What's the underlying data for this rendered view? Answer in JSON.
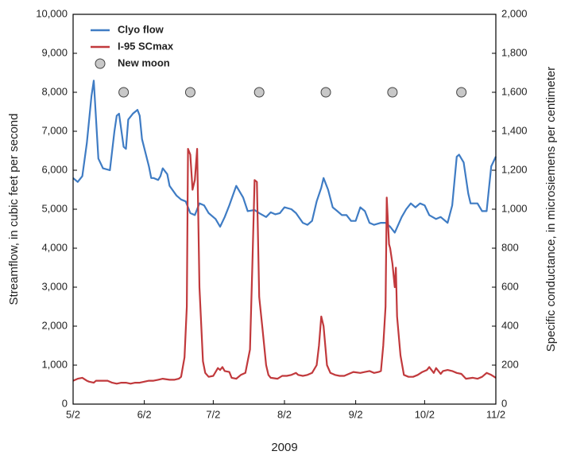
{
  "chart_data": {
    "type": "line",
    "x_label": "2009",
    "y_label": "Streamflow, in cubic feet per second",
    "y2_label": "Specific conductance, in microsiemens per centimeter",
    "xlim": [
      0,
      184
    ],
    "xticks": [
      {
        "value": 0,
        "label": "5/2"
      },
      {
        "value": 31,
        "label": "6/2"
      },
      {
        "value": 61,
        "label": "7/2"
      },
      {
        "value": 92,
        "label": "8/2"
      },
      {
        "value": 123,
        "label": "9/2"
      },
      {
        "value": 153,
        "label": "10/2"
      },
      {
        "value": 184,
        "label": "11/2"
      }
    ],
    "ylim": [
      0,
      10000
    ],
    "yticks": [
      0,
      {
        "value": 1000,
        "label": "1,000"
      },
      {
        "value": 2000,
        "label": "2,000"
      },
      {
        "value": 3000,
        "label": "3,000"
      },
      {
        "value": 4000,
        "label": "4,000"
      },
      {
        "value": 5000,
        "label": "5,000"
      },
      {
        "value": 6000,
        "label": "6,000"
      },
      {
        "value": 7000,
        "label": "7,000"
      },
      {
        "value": 8000,
        "label": "8,000"
      },
      {
        "value": 9000,
        "label": "9,000"
      },
      {
        "value": 10000,
        "label": "10,000"
      }
    ],
    "y2lim": [
      0,
      2000
    ],
    "y2ticks": [
      0,
      200,
      400,
      600,
      800,
      {
        "value": 1000,
        "label": "1,000"
      },
      {
        "value": 1200,
        "label": "1,200"
      },
      {
        "value": 1400,
        "label": "1,400"
      },
      {
        "value": 1600,
        "label": "1,600"
      },
      {
        "value": 1800,
        "label": "1,800"
      },
      {
        "value": 2000,
        "label": "2,000"
      }
    ],
    "legend": "upper left",
    "series": [
      {
        "name": "Clyo flow",
        "color": "#3f7cc4",
        "x": [
          0,
          2,
          4,
          6,
          8,
          9,
          10,
          11,
          13,
          16,
          18,
          19,
          20,
          22,
          23,
          24,
          26,
          28,
          29,
          30,
          33,
          34,
          35,
          37,
          38,
          39,
          41,
          42,
          45,
          47,
          49,
          51,
          53,
          55,
          57,
          59,
          62,
          64,
          66,
          68,
          71,
          74,
          76,
          79,
          81,
          84,
          86,
          88,
          90,
          92,
          95,
          97,
          100,
          102,
          104,
          106,
          108,
          109,
          111,
          113,
          115,
          117,
          119,
          121,
          123,
          125,
          127,
          129,
          131,
          134,
          136,
          138,
          140,
          143,
          145,
          147,
          149,
          151,
          153,
          155,
          158,
          160,
          163,
          165,
          167,
          168,
          170,
          172,
          173,
          176,
          178,
          180,
          182,
          184
        ],
        "values": [
          5800,
          5700,
          5850,
          6700,
          7900,
          8300,
          7300,
          6300,
          6050,
          6000,
          7000,
          7400,
          7450,
          6600,
          6550,
          7300,
          7450,
          7550,
          7400,
          6800,
          6100,
          5800,
          5800,
          5750,
          5850,
          6050,
          5900,
          5600,
          5350,
          5250,
          5200,
          4900,
          4850,
          5150,
          5100,
          4900,
          4750,
          4550,
          4800,
          5100,
          5600,
          5300,
          4950,
          4980,
          4900,
          4800,
          4920,
          4870,
          4900,
          5050,
          5000,
          4900,
          4650,
          4600,
          4700,
          5200,
          5550,
          5800,
          5500,
          5050,
          4950,
          4850,
          4850,
          4700,
          4700,
          5050,
          4950,
          4650,
          4600,
          4650,
          4650,
          4550,
          4400,
          4800,
          5000,
          5150,
          5050,
          5150,
          5100,
          4850,
          4750,
          4800,
          4650,
          5100,
          6350,
          6400,
          6200,
          5400,
          5150,
          5150,
          4950,
          4950,
          6100,
          6350
        ]
      },
      {
        "name": "I-95 SCmax",
        "color": "#c1393c",
        "axis": "y2",
        "x": [
          0,
          2,
          4,
          6,
          7,
          9,
          10,
          12,
          15,
          17,
          19,
          21,
          23,
          25,
          27,
          29,
          31,
          33,
          35,
          37,
          39,
          42,
          44,
          46,
          47,
          48.5,
          49.5,
          50,
          51,
          52,
          53,
          54,
          55,
          56.5,
          57.5,
          59,
          61,
          63,
          64,
          65,
          66,
          68,
          69,
          71,
          73,
          75,
          77,
          78,
          79,
          80,
          81,
          82.5,
          84,
          85,
          86,
          89,
          91,
          93,
          95,
          97,
          98,
          100,
          102,
          104,
          106,
          107,
          108,
          109,
          110.5,
          112,
          114,
          116,
          118,
          120,
          122,
          125,
          127,
          129,
          131,
          133,
          134,
          135,
          136,
          136.5,
          137.5,
          138,
          139,
          140,
          140.5,
          141,
          142.5,
          144,
          146,
          148,
          150,
          152,
          154,
          155,
          157,
          158,
          160,
          161,
          163,
          165,
          167,
          169,
          171,
          174,
          176,
          178,
          180,
          182,
          184
        ],
        "values": [
          120,
          130,
          135,
          120,
          115,
          110,
          120,
          120,
          120,
          110,
          105,
          110,
          110,
          105,
          110,
          110,
          115,
          120,
          120,
          125,
          130,
          125,
          125,
          130,
          140,
          240,
          500,
          1310,
          1280,
          1100,
          1150,
          1310,
          600,
          220,
          160,
          140,
          145,
          185,
          175,
          190,
          170,
          165,
          135,
          130,
          150,
          160,
          280,
          700,
          1150,
          1140,
          550,
          380,
          200,
          150,
          135,
          130,
          145,
          145,
          150,
          160,
          150,
          145,
          150,
          160,
          200,
          300,
          450,
          400,
          200,
          160,
          150,
          145,
          145,
          155,
          165,
          160,
          165,
          170,
          160,
          165,
          170,
          300,
          500,
          1060,
          820,
          800,
          720,
          600,
          700,
          450,
          250,
          150,
          140,
          140,
          150,
          165,
          175,
          190,
          160,
          185,
          155,
          170,
          175,
          170,
          160,
          155,
          130,
          135,
          130,
          140,
          160,
          150,
          135
        ]
      },
      {
        "name": "New moon",
        "type": "scatter",
        "color": "#c8c8c8",
        "x": [
          22,
          51,
          81,
          110,
          139,
          169
        ],
        "values": [
          8000,
          8000,
          8000,
          8000,
          8000,
          8000
        ]
      }
    ]
  }
}
